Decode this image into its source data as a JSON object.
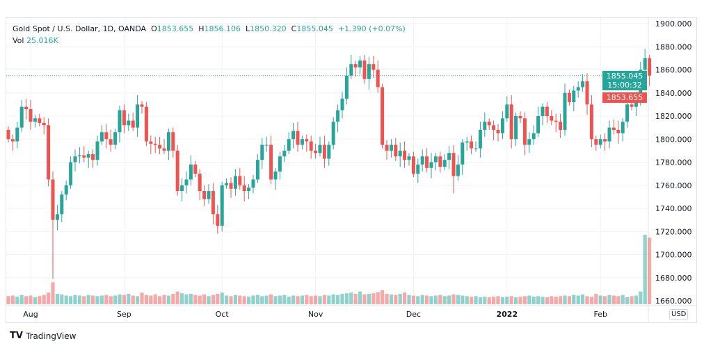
{
  "header": {
    "symbol": "Gold Spot / U.S. Dollar, 1D, OANDA",
    "o_label": "O",
    "open": "1853.655",
    "h_label": "H",
    "high": "1856.106",
    "l_label": "L",
    "low": "1850.320",
    "c_label": "C",
    "close": "1855.045",
    "change": "+1.390 (+0.07%)",
    "vol_label": "Vol",
    "vol": "25.016K"
  },
  "price_axis": {
    "currency": "USD",
    "last_price": "1855.045",
    "countdown": "15:00:32",
    "open_price": "1853.655"
  },
  "branding": "TradingView",
  "colors": {
    "up": "#26a69a",
    "down": "#ef5350"
  },
  "chart_data": {
    "type": "candlestick",
    "title": "Gold Spot / U.S. Dollar, 1D, OANDA",
    "yticks": [
      "1660.000",
      "1680.000",
      "1700.000",
      "1720.000",
      "1740.000",
      "1760.000",
      "1780.000",
      "1800.000",
      "1820.000",
      "1840.000",
      "1860.000",
      "1880.000",
      "1900.000"
    ],
    "ylim": [
      1660,
      1900
    ],
    "xticks": [
      {
        "label": "Aug",
        "index": 5
      },
      {
        "label": "Sep",
        "index": 26
      },
      {
        "label": "Oct",
        "index": 48
      },
      {
        "label": "Nov",
        "index": 69
      },
      {
        "label": "Dec",
        "index": 91
      },
      {
        "label": "2022",
        "index": 112
      },
      {
        "label": "Feb",
        "index": 133
      }
    ],
    "first_open": 1808,
    "closes": [
      1800,
      1798,
      1810,
      1828,
      1826,
      1815,
      1818,
      1814,
      1812,
      1765,
      1730,
      1735,
      1752,
      1760,
      1780,
      1785,
      1786,
      1784,
      1787,
      1782,
      1798,
      1806,
      1800,
      1795,
      1806,
      1825,
      1812,
      1816,
      1810,
      1830,
      1828,
      1798,
      1796,
      1795,
      1792,
      1790,
      1806,
      1790,
      1755,
      1760,
      1765,
      1778,
      1770,
      1755,
      1748,
      1755,
      1735,
      1725,
      1760,
      1762,
      1757,
      1768,
      1760,
      1755,
      1758,
      1765,
      1782,
      1795,
      1795,
      1765,
      1772,
      1785,
      1790,
      1800,
      1807,
      1795,
      1800,
      1798,
      1790,
      1788,
      1795,
      1783,
      1795,
      1815,
      1825,
      1835,
      1855,
      1865,
      1862,
      1868,
      1852,
      1865,
      1860,
      1845,
      1795,
      1790,
      1795,
      1785,
      1790,
      1782,
      1785,
      1770,
      1778,
      1785,
      1775,
      1780,
      1785,
      1776,
      1782,
      1788,
      1768,
      1778,
      1797,
      1798,
      1792,
      1792,
      1808,
      1815,
      1812,
      1808,
      1805,
      1818,
      1830,
      1800,
      1820,
      1818,
      1795,
      1800,
      1805,
      1820,
      1828,
      1820,
      1816,
      1815,
      1808,
      1840,
      1832,
      1842,
      1845,
      1850,
      1830,
      1800,
      1795,
      1800,
      1798,
      1810,
      1808,
      1805,
      1815,
      1830,
      1828,
      1835,
      1860,
      1870,
      1855
    ],
    "low_overrides": {
      "10": 1679,
      "100": 1753
    },
    "volumes": [
      14,
      15,
      13,
      16,
      14,
      15,
      12,
      14,
      16,
      20,
      38,
      18,
      17,
      15,
      14,
      16,
      15,
      14,
      16,
      15,
      14,
      15,
      16,
      14,
      15,
      17,
      16,
      18,
      15,
      14,
      20,
      16,
      15,
      17,
      14,
      16,
      15,
      18,
      22,
      19,
      17,
      18,
      16,
      15,
      17,
      14,
      16,
      18,
      20,
      15,
      14,
      16,
      15,
      14,
      13,
      15,
      16,
      14,
      15,
      17,
      14,
      15,
      16,
      13,
      15,
      14,
      15,
      16,
      14,
      15,
      14,
      16,
      15,
      17,
      16,
      18,
      19,
      20,
      18,
      22,
      17,
      18,
      19,
      21,
      24,
      18,
      17,
      16,
      18,
      20,
      16,
      15,
      14,
      16,
      15,
      14,
      15,
      16,
      14,
      15,
      17,
      16,
      15,
      14,
      13,
      14,
      12,
      13,
      12,
      13,
      14,
      12,
      13,
      14,
      12,
      13,
      14,
      15,
      13,
      14,
      13,
      12,
      14,
      13,
      14,
      15,
      14,
      16,
      15,
      17,
      14,
      13,
      18,
      15,
      14,
      16,
      15,
      14,
      16,
      12,
      14,
      15,
      22,
      120,
      115
    ]
  }
}
